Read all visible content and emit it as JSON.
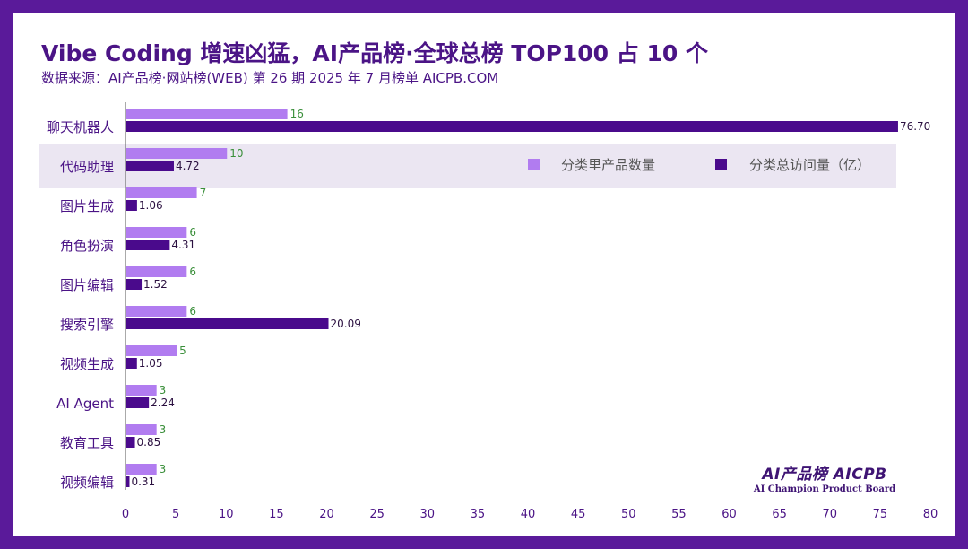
{
  "title": "Vibe Coding 增速凶猛，AI产品榜·全球总榜 TOP100 占 10 个",
  "subtitle": "数据来源：AI产品榜·网站榜(WEB) 第 26 期 2025 年 7 月榜单 AICPB.COM",
  "brand": {
    "name": "AI产品榜 AICPB",
    "tagline": "AI Champion Product Board"
  },
  "colors": {
    "count": "#b17cf0",
    "visits": "#4a0a8c",
    "count_label": "#3a8f3a",
    "highlight": "#ebe6f2"
  },
  "chart_data": {
    "type": "bar",
    "orientation": "horizontal",
    "categories": [
      "聊天机器人",
      "代码助理",
      "图片生成",
      "角色扮演",
      "图片编辑",
      "搜索引擎",
      "视频生成",
      "AI Agent",
      "教育工具",
      "视频编辑"
    ],
    "highlight_category": "代码助理",
    "series": [
      {
        "name": "分类里产品数量",
        "values": [
          16,
          10,
          7,
          6,
          6,
          6,
          5,
          3,
          3,
          3
        ],
        "labels": [
          "16",
          "10",
          "7",
          "6",
          "6",
          "6",
          "5",
          "3",
          "3",
          "3"
        ]
      },
      {
        "name": "分类总访问量（亿）",
        "values": [
          76.7,
          4.72,
          1.06,
          4.31,
          1.52,
          20.09,
          1.05,
          2.24,
          0.85,
          0.31
        ],
        "labels": [
          "76.70",
          "4.72",
          "1.06",
          "4.31",
          "1.52",
          "20.09",
          "1.05",
          "2.24",
          "0.85",
          "0.31"
        ]
      }
    ],
    "xlim": [
      0,
      80
    ],
    "xticks": [
      "0",
      "5",
      "10",
      "15",
      "20",
      "25",
      "30",
      "35",
      "40",
      "45",
      "50",
      "55",
      "60",
      "65",
      "70",
      "75",
      "80"
    ],
    "grid": false,
    "legend": "top-right"
  }
}
